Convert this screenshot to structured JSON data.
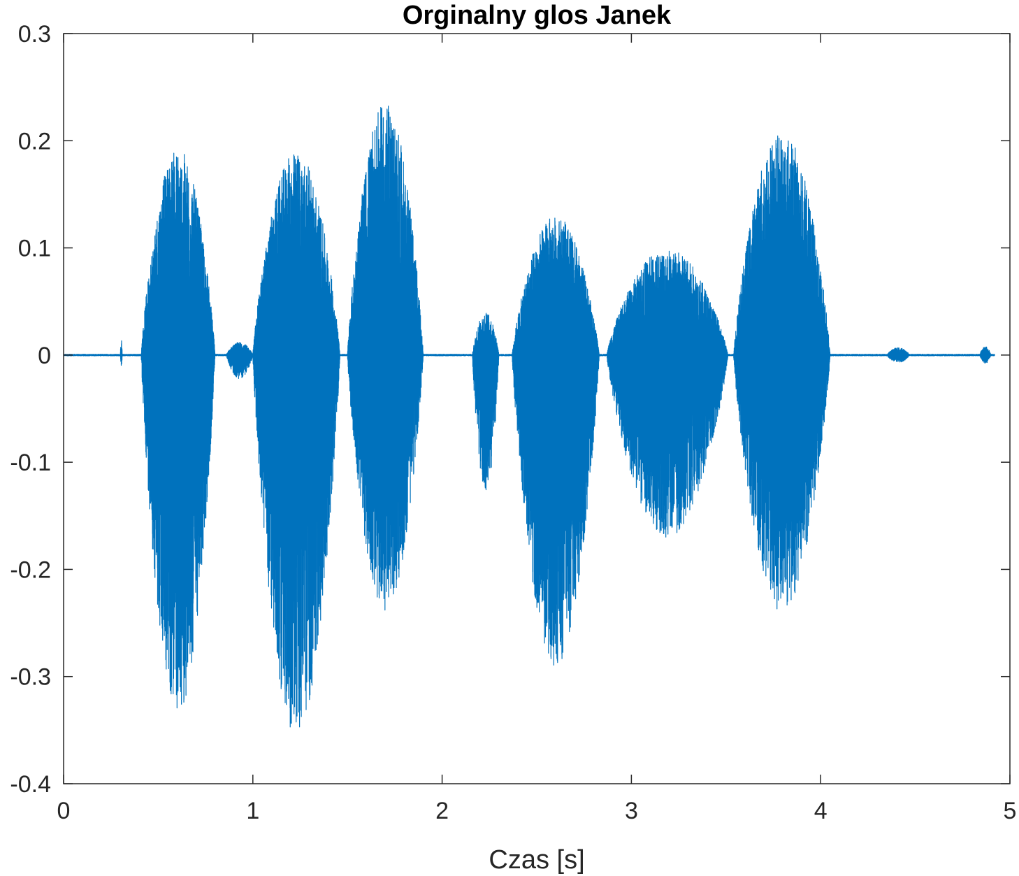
{
  "chart_data": {
    "type": "line",
    "title": "Orginalny glos Janek",
    "xlabel": "Czas [s]",
    "ylabel": "",
    "xlim": [
      0,
      5
    ],
    "ylim": [
      -0.4,
      0.3
    ],
    "xticks": [
      0,
      1,
      2,
      3,
      4,
      5
    ],
    "xtick_labels": [
      "0",
      "1",
      "2",
      "3",
      "4",
      "5"
    ],
    "yticks": [
      0.3,
      0.2,
      0.1,
      0,
      -0.1,
      -0.2,
      -0.3,
      -0.4
    ],
    "ytick_labels": [
      "0.3",
      "0.2",
      "0.1",
      "0",
      "-0.1",
      "-0.2",
      "-0.3",
      "-0.4"
    ],
    "grid": false,
    "line_color": "#0072BD",
    "series": [
      {
        "description_of_shape": "waveform envelope peaks",
        "segments": [
          {
            "t_start": 0.3,
            "t_end": 0.31,
            "max": 0.015,
            "min": -0.01
          },
          {
            "t_start": 0.41,
            "t_end": 0.8,
            "max": 0.193,
            "min": -0.335
          },
          {
            "t_start": 0.86,
            "t_end": 1.0,
            "max": 0.012,
            "min": -0.022
          },
          {
            "t_start": 1.0,
            "t_end": 1.46,
            "max": 0.19,
            "min": -0.355
          },
          {
            "t_start": 1.5,
            "t_end": 1.9,
            "max": 0.235,
            "min": -0.24
          },
          {
            "t_start": 2.16,
            "t_end": 2.3,
            "max": 0.04,
            "min": -0.13
          },
          {
            "t_start": 2.37,
            "t_end": 2.83,
            "max": 0.13,
            "min": -0.29
          },
          {
            "t_start": 2.87,
            "t_end": 3.51,
            "max": 0.1,
            "min": -0.17
          },
          {
            "t_start": 3.54,
            "t_end": 4.05,
            "max": 0.21,
            "min": -0.24
          },
          {
            "t_start": 4.35,
            "t_end": 4.47,
            "max": 0.007,
            "min": -0.007
          },
          {
            "t_start": 4.84,
            "t_end": 4.9,
            "max": 0.008,
            "min": -0.008
          }
        ]
      }
    ]
  }
}
